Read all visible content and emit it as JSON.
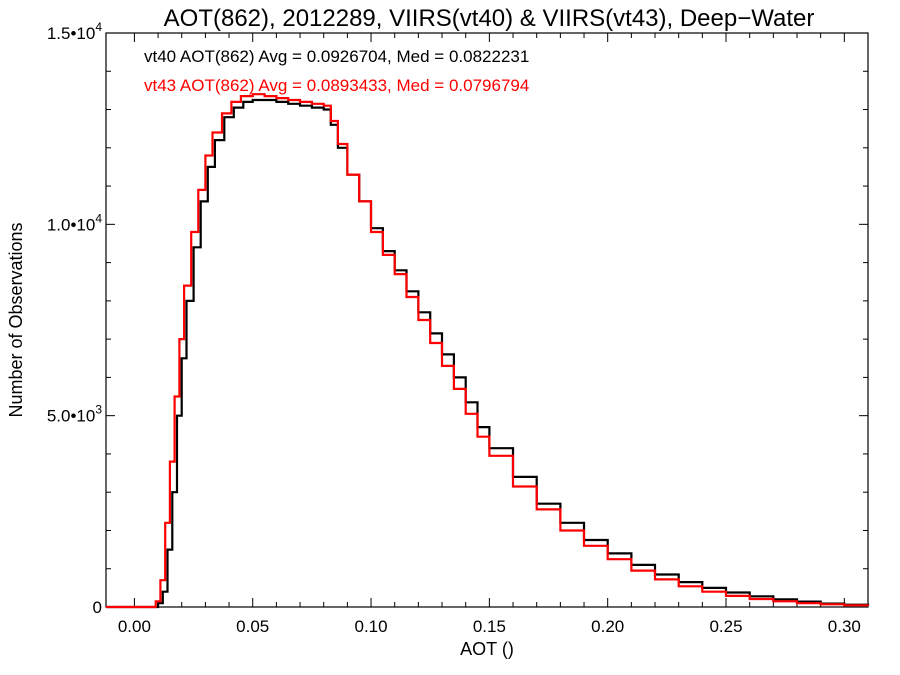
{
  "chart_data": {
    "type": "line",
    "style": "step-histogram",
    "title": "AOT(862), 2012289, VIIRS(vt40) & VIIRS(vt43), Deep−Water",
    "xlabel": "AOT ()",
    "ylabel": "Number of Observations",
    "xlim": [
      -0.012,
      0.31
    ],
    "ylim": [
      0,
      15000
    ],
    "x_ticks": [
      0.0,
      0.05,
      0.1,
      0.15,
      0.2,
      0.25,
      0.3
    ],
    "x_tick_labels": [
      "0.00",
      "0.05",
      "0.10",
      "0.15",
      "0.20",
      "0.25",
      "0.30"
    ],
    "y_ticks": [
      {
        "value": 0,
        "mantissa": "0",
        "exponent": ""
      },
      {
        "value": 5000,
        "mantissa": "5.0•10",
        "exponent": "3"
      },
      {
        "value": 10000,
        "mantissa": "1.0•10",
        "exponent": "4"
      },
      {
        "value": 15000,
        "mantissa": "1.5•10",
        "exponent": "4"
      }
    ],
    "grid": false,
    "legend_position": "top-left",
    "series": [
      {
        "name": "vt40",
        "color": "#000000",
        "legend_label": "vt40 AOT(862) Avg = 0.0926704, Med = 0.0822231",
        "x": [
          -0.012,
          0.005,
          0.01,
          0.012,
          0.014,
          0.016,
          0.018,
          0.02,
          0.022,
          0.025,
          0.028,
          0.031,
          0.034,
          0.038,
          0.042,
          0.046,
          0.05,
          0.055,
          0.06,
          0.065,
          0.07,
          0.075,
          0.08,
          0.083,
          0.086,
          0.09,
          0.095,
          0.1,
          0.105,
          0.11,
          0.115,
          0.12,
          0.125,
          0.13,
          0.135,
          0.14,
          0.145,
          0.15,
          0.16,
          0.17,
          0.18,
          0.19,
          0.2,
          0.21,
          0.22,
          0.23,
          0.24,
          0.25,
          0.26,
          0.27,
          0.28,
          0.29,
          0.3,
          0.31
        ],
        "y": [
          0,
          0,
          100,
          400,
          1500,
          3000,
          5000,
          6500,
          8000,
          9400,
          10600,
          11500,
          12200,
          12800,
          13050,
          13200,
          13250,
          13250,
          13200,
          13150,
          13100,
          13050,
          13000,
          12600,
          12000,
          11300,
          10600,
          9900,
          9300,
          8800,
          8250,
          7700,
          7150,
          6600,
          6000,
          5350,
          4700,
          4150,
          3400,
          2700,
          2200,
          1750,
          1400,
          1100,
          850,
          650,
          500,
          380,
          280,
          200,
          140,
          90,
          60,
          40
        ]
      },
      {
        "name": "vt43",
        "color": "#ff0000",
        "legend_label": "vt43 AOT(862) Avg = 0.0893433, Med = 0.0796794",
        "x": [
          -0.012,
          0.005,
          0.009,
          0.011,
          0.013,
          0.015,
          0.017,
          0.019,
          0.021,
          0.024,
          0.027,
          0.03,
          0.033,
          0.037,
          0.041,
          0.045,
          0.05,
          0.055,
          0.06,
          0.065,
          0.07,
          0.075,
          0.08,
          0.083,
          0.086,
          0.09,
          0.095,
          0.1,
          0.105,
          0.11,
          0.115,
          0.12,
          0.125,
          0.13,
          0.135,
          0.14,
          0.145,
          0.15,
          0.16,
          0.17,
          0.18,
          0.19,
          0.2,
          0.21,
          0.22,
          0.23,
          0.24,
          0.25,
          0.26,
          0.27,
          0.28,
          0.29,
          0.3,
          0.31
        ],
        "y": [
          0,
          0,
          150,
          700,
          2200,
          3800,
          5500,
          7000,
          8400,
          9800,
          10900,
          11800,
          12400,
          12900,
          13200,
          13350,
          13400,
          13350,
          13300,
          13250,
          13200,
          13150,
          13100,
          12700,
          12100,
          11300,
          10600,
          9800,
          9200,
          8700,
          8100,
          7500,
          6900,
          6300,
          5700,
          5050,
          4450,
          3950,
          3150,
          2550,
          2000,
          1600,
          1250,
          950,
          720,
          540,
          400,
          290,
          210,
          150,
          100,
          70,
          45,
          30
        ]
      }
    ]
  }
}
